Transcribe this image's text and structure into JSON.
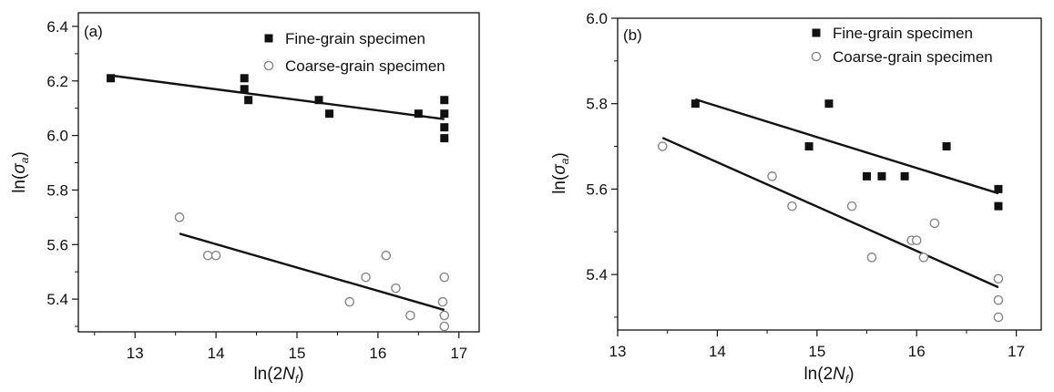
{
  "chart_data": [
    {
      "type": "scatter",
      "panel_label": "(a)",
      "xlabel": "ln(2Nf)",
      "ylabel": "ln(σa)",
      "xlim": [
        12.3,
        17.25
      ],
      "ylim": [
        5.28,
        6.45
      ],
      "xticks": [
        13,
        14,
        15,
        16,
        17
      ],
      "yticks": [
        5.4,
        5.6,
        5.8,
        6.0,
        6.2,
        6.4
      ],
      "ytick_decimals": 1,
      "legend_position": "top-right",
      "grid": false,
      "series": [
        {
          "name": "Fine-grain specimen",
          "marker": "filled-square",
          "color": "#111111",
          "points": [
            [
              12.7,
              6.21
            ],
            [
              14.35,
              6.21
            ],
            [
              14.35,
              6.17
            ],
            [
              14.4,
              6.13
            ],
            [
              15.27,
              6.13
            ],
            [
              15.4,
              6.08
            ],
            [
              16.5,
              6.08
            ],
            [
              16.82,
              6.13
            ],
            [
              16.82,
              6.08
            ],
            [
              16.82,
              6.03
            ],
            [
              16.82,
              5.99
            ]
          ],
          "fit": [
            [
              12.7,
              6.22
            ],
            [
              16.82,
              6.06
            ]
          ]
        },
        {
          "name": "Coarse-grain specimen",
          "marker": "open-circle",
          "color": "#888888",
          "points": [
            [
              13.55,
              5.7
            ],
            [
              13.9,
              5.56
            ],
            [
              14.0,
              5.56
            ],
            [
              15.65,
              5.39
            ],
            [
              15.85,
              5.48
            ],
            [
              16.1,
              5.56
            ],
            [
              16.22,
              5.44
            ],
            [
              16.4,
              5.34
            ],
            [
              16.8,
              5.39
            ],
            [
              16.82,
              5.48
            ],
            [
              16.82,
              5.34
            ],
            [
              16.82,
              5.3
            ]
          ],
          "fit": [
            [
              13.55,
              5.64
            ],
            [
              16.82,
              5.36
            ]
          ]
        }
      ]
    },
    {
      "type": "scatter",
      "panel_label": "(b)",
      "xlabel": "ln(2Nf)",
      "ylabel": "ln(σa)",
      "xlim": [
        13.0,
        17.25
      ],
      "ylim": [
        5.27,
        6.0
      ],
      "xticks": [
        13,
        14,
        15,
        16,
        17
      ],
      "yticks": [
        5.4,
        5.6,
        5.8,
        6.0
      ],
      "ytick_decimals": 1,
      "legend_position": "top-right",
      "grid": false,
      "series": [
        {
          "name": "Fine-grain specimen",
          "marker": "filled-square",
          "color": "#111111",
          "points": [
            [
              13.78,
              5.8
            ],
            [
              14.92,
              5.7
            ],
            [
              15.12,
              5.8
            ],
            [
              15.5,
              5.63
            ],
            [
              15.65,
              5.63
            ],
            [
              15.88,
              5.63
            ],
            [
              16.3,
              5.7
            ],
            [
              16.82,
              5.6
            ],
            [
              16.82,
              5.56
            ]
          ],
          "fit": [
            [
              13.78,
              5.81
            ],
            [
              16.82,
              5.59
            ]
          ]
        },
        {
          "name": "Coarse-grain specimen",
          "marker": "open-circle",
          "color": "#888888",
          "points": [
            [
              13.45,
              5.7
            ],
            [
              14.55,
              5.63
            ],
            [
              14.75,
              5.56
            ],
            [
              15.35,
              5.56
            ],
            [
              15.55,
              5.44
            ],
            [
              15.95,
              5.48
            ],
            [
              16.0,
              5.48
            ],
            [
              16.07,
              5.44
            ],
            [
              16.18,
              5.52
            ],
            [
              16.82,
              5.39
            ],
            [
              16.82,
              5.34
            ],
            [
              16.82,
              5.3
            ]
          ],
          "fit": [
            [
              13.45,
              5.72
            ],
            [
              16.82,
              5.37
            ]
          ]
        }
      ]
    }
  ]
}
